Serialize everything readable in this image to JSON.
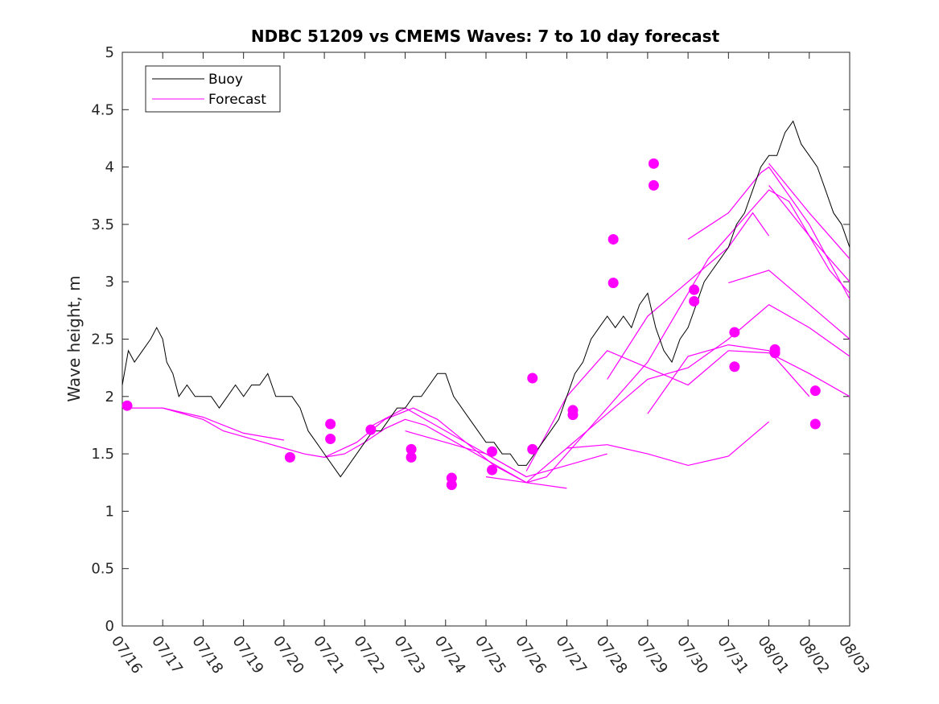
{
  "chart_data": {
    "type": "line",
    "title": "NDBC 51209 vs CMEMS Waves: 7 to 10 day forecast",
    "xlabel": "",
    "ylabel": "Wave height, m",
    "x_ticks": [
      "07/16",
      "07/17",
      "07/18",
      "07/19",
      "07/20",
      "07/21",
      "07/22",
      "07/23",
      "07/24",
      "07/25",
      "07/26",
      "07/27",
      "07/28",
      "07/29",
      "07/30",
      "07/31",
      "08/01",
      "08/02",
      "08/03"
    ],
    "x_unit": "days since 07/16",
    "xlim": [
      0,
      18
    ],
    "ylim": [
      0,
      5
    ],
    "y_ticks": [
      "0",
      "0.5",
      "1",
      "1.5",
      "2",
      "2.5",
      "3",
      "3.5",
      "4",
      "4.5",
      "5"
    ],
    "grid": false,
    "legend_position": "top-left",
    "colors": {
      "buoy": "#000000",
      "forecast": "#ff00ff"
    },
    "series": [
      {
        "name": "Buoy",
        "points": [
          [
            0.0,
            2.1
          ],
          [
            0.15,
            2.4
          ],
          [
            0.3,
            2.3
          ],
          [
            0.5,
            2.4
          ],
          [
            0.7,
            2.5
          ],
          [
            0.85,
            2.6
          ],
          [
            1.0,
            2.5
          ],
          [
            1.1,
            2.3
          ],
          [
            1.25,
            2.2
          ],
          [
            1.4,
            2.0
          ],
          [
            1.6,
            2.1
          ],
          [
            1.8,
            2.0
          ],
          [
            2.0,
            2.0
          ],
          [
            2.2,
            2.0
          ],
          [
            2.4,
            1.9
          ],
          [
            2.6,
            2.0
          ],
          [
            2.8,
            2.1
          ],
          [
            3.0,
            2.0
          ],
          [
            3.2,
            2.1
          ],
          [
            3.4,
            2.1
          ],
          [
            3.6,
            2.2
          ],
          [
            3.8,
            2.0
          ],
          [
            4.0,
            2.0
          ],
          [
            4.2,
            2.0
          ],
          [
            4.4,
            1.9
          ],
          [
            4.6,
            1.7
          ],
          [
            4.8,
            1.6
          ],
          [
            5.0,
            1.5
          ],
          [
            5.2,
            1.4
          ],
          [
            5.4,
            1.3
          ],
          [
            5.6,
            1.4
          ],
          [
            5.8,
            1.5
          ],
          [
            6.0,
            1.6
          ],
          [
            6.2,
            1.7
          ],
          [
            6.4,
            1.7
          ],
          [
            6.6,
            1.8
          ],
          [
            6.8,
            1.9
          ],
          [
            7.0,
            1.9
          ],
          [
            7.2,
            2.0
          ],
          [
            7.4,
            2.0
          ],
          [
            7.6,
            2.1
          ],
          [
            7.8,
            2.2
          ],
          [
            8.0,
            2.2
          ],
          [
            8.2,
            2.0
          ],
          [
            8.4,
            1.9
          ],
          [
            8.6,
            1.8
          ],
          [
            8.8,
            1.7
          ],
          [
            9.0,
            1.6
          ],
          [
            9.2,
            1.6
          ],
          [
            9.4,
            1.5
          ],
          [
            9.6,
            1.5
          ],
          [
            9.8,
            1.4
          ],
          [
            10.0,
            1.4
          ],
          [
            10.2,
            1.5
          ],
          [
            10.4,
            1.6
          ],
          [
            10.6,
            1.7
          ],
          [
            10.8,
            1.8
          ],
          [
            11.0,
            2.0
          ],
          [
            11.2,
            2.2
          ],
          [
            11.4,
            2.3
          ],
          [
            11.6,
            2.5
          ],
          [
            11.8,
            2.6
          ],
          [
            12.0,
            2.7
          ],
          [
            12.2,
            2.6
          ],
          [
            12.4,
            2.7
          ],
          [
            12.6,
            2.6
          ],
          [
            12.8,
            2.8
          ],
          [
            13.0,
            2.9
          ],
          [
            13.2,
            2.6
          ],
          [
            13.4,
            2.4
          ],
          [
            13.6,
            2.3
          ],
          [
            13.8,
            2.5
          ],
          [
            14.0,
            2.6
          ],
          [
            14.2,
            2.8
          ],
          [
            14.4,
            3.0
          ],
          [
            14.6,
            3.1
          ],
          [
            14.8,
            3.2
          ],
          [
            15.0,
            3.3
          ],
          [
            15.2,
            3.5
          ],
          [
            15.4,
            3.6
          ],
          [
            15.6,
            3.8
          ],
          [
            15.8,
            4.0
          ],
          [
            16.0,
            4.1
          ],
          [
            16.2,
            4.1
          ],
          [
            16.4,
            4.3
          ],
          [
            16.6,
            4.4
          ],
          [
            16.8,
            4.2
          ],
          [
            17.0,
            4.1
          ],
          [
            17.2,
            4.0
          ],
          [
            17.4,
            3.8
          ],
          [
            17.6,
            3.6
          ],
          [
            17.8,
            3.5
          ],
          [
            18.0,
            3.3
          ]
        ]
      },
      {
        "name": "Forecast",
        "points": [
          [
            0.1,
            1.9
          ],
          [
            0.5,
            1.9
          ],
          [
            1.0,
            1.9
          ],
          [
            1.5,
            1.85
          ],
          [
            2.0,
            1.8
          ],
          [
            2.5,
            1.7
          ],
          [
            3.0,
            1.65
          ],
          [
            3.5,
            1.6
          ],
          [
            4.0,
            1.55
          ],
          [
            4.5,
            1.5
          ],
          [
            5.0,
            1.47
          ],
          [
            5.5,
            1.5
          ],
          [
            6.0,
            1.6
          ],
          [
            6.5,
            1.72
          ],
          [
            7.0,
            1.8
          ],
          [
            7.5,
            1.75
          ],
          [
            8.0,
            1.65
          ],
          [
            8.5,
            1.55
          ],
          [
            9.0,
            1.45
          ],
          [
            9.5,
            1.35
          ],
          [
            10.0,
            1.25
          ],
          [
            10.5,
            1.3
          ],
          [
            11.0,
            1.5
          ],
          [
            11.5,
            1.7
          ],
          [
            12.0,
            1.9
          ],
          [
            12.5,
            2.1
          ],
          [
            13.0,
            2.3
          ],
          [
            13.5,
            2.6
          ],
          [
            14.0,
            2.9
          ],
          [
            14.5,
            3.2
          ],
          [
            15.0,
            3.4
          ],
          [
            15.5,
            3.6
          ],
          [
            16.0,
            3.8
          ],
          [
            16.5,
            3.7
          ],
          [
            17.0,
            3.4
          ],
          [
            17.5,
            3.1
          ],
          [
            18.0,
            2.9
          ]
        ]
      }
    ],
    "forecast_segments": [
      [
        [
          1.0,
          1.9
        ],
        [
          2.0,
          1.82
        ],
        [
          3.0,
          1.68
        ],
        [
          4.0,
          1.62
        ]
      ],
      [
        [
          5.0,
          1.47
        ],
        [
          5.8,
          1.6
        ],
        [
          6.5,
          1.8
        ],
        [
          7.2,
          1.9
        ],
        [
          7.8,
          1.8
        ],
        [
          8.5,
          1.6
        ],
        [
          9.2,
          1.4
        ],
        [
          10.0,
          1.25
        ],
        [
          11.0,
          1.2
        ]
      ],
      [
        [
          6.2,
          1.75
        ],
        [
          7.0,
          1.9
        ],
        [
          8.0,
          1.7
        ],
        [
          9.0,
          1.5
        ],
        [
          10.0,
          1.3
        ]
      ],
      [
        [
          7.0,
          1.7
        ],
        [
          8.0,
          1.6
        ],
        [
          9.0,
          1.5
        ],
        [
          10.0,
          1.3
        ],
        [
          11.0,
          1.4
        ],
        [
          12.0,
          1.5
        ]
      ],
      [
        [
          9.0,
          1.3
        ],
        [
          10.0,
          1.25
        ],
        [
          11.0,
          1.55
        ],
        [
          12.0,
          1.85
        ],
        [
          13.0,
          2.15
        ],
        [
          14.0,
          2.25
        ],
        [
          15.0,
          2.5
        ],
        [
          16.0,
          2.8
        ],
        [
          17.0,
          2.6
        ],
        [
          18.0,
          2.35
        ]
      ],
      [
        [
          10.0,
          1.35
        ],
        [
          11.0,
          2.0
        ],
        [
          12.0,
          2.4
        ],
        [
          13.0,
          2.25
        ],
        [
          14.0,
          2.1
        ],
        [
          15.0,
          2.4
        ],
        [
          16.0,
          2.38
        ],
        [
          17.0,
          2.2
        ],
        [
          18.0,
          2.0
        ]
      ],
      [
        [
          11.0,
          1.55
        ],
        [
          12.0,
          1.58
        ],
        [
          13.0,
          1.5
        ],
        [
          14.0,
          1.4
        ],
        [
          15.0,
          1.48
        ],
        [
          16.0,
          1.78
        ]
      ],
      [
        [
          12.0,
          2.15
        ],
        [
          13.0,
          2.7
        ],
        [
          14.0,
          3.0
        ],
        [
          15.0,
          3.3
        ],
        [
          15.6,
          3.6
        ],
        [
          16.0,
          3.4
        ]
      ],
      [
        [
          13.0,
          1.85
        ],
        [
          14.0,
          2.35
        ],
        [
          15.0,
          2.45
        ],
        [
          16.0,
          2.4
        ],
        [
          17.0,
          2.0
        ]
      ],
      [
        [
          14.0,
          3.37
        ],
        [
          15.0,
          3.6
        ],
        [
          15.8,
          3.95
        ],
        [
          16.0,
          4.0
        ],
        [
          17.0,
          3.5
        ],
        [
          18.0,
          2.85
        ]
      ],
      [
        [
          15.0,
          2.99
        ],
        [
          16.0,
          3.1
        ],
        [
          17.0,
          2.8
        ],
        [
          18.0,
          2.5
        ]
      ],
      [
        [
          16.0,
          4.03
        ],
        [
          17.0,
          3.6
        ],
        [
          18.0,
          3.2
        ]
      ],
      [
        [
          16.0,
          3.84
        ],
        [
          17.0,
          3.4
        ],
        [
          18.0,
          3.0
        ]
      ]
    ],
    "forecast_markers": [
      [
        0.12,
        1.92
      ],
      [
        4.15,
        1.47
      ],
      [
        5.15,
        1.76
      ],
      [
        5.15,
        1.63
      ],
      [
        6.15,
        1.71
      ],
      [
        7.15,
        1.54
      ],
      [
        7.15,
        1.47
      ],
      [
        8.15,
        1.29
      ],
      [
        8.15,
        1.23
      ],
      [
        9.15,
        1.52
      ],
      [
        9.15,
        1.36
      ],
      [
        10.15,
        2.16
      ],
      [
        10.15,
        1.54
      ],
      [
        11.15,
        1.88
      ],
      [
        11.15,
        1.84
      ],
      [
        12.15,
        3.37
      ],
      [
        12.15,
        2.99
      ],
      [
        13.15,
        4.03
      ],
      [
        13.15,
        3.84
      ],
      [
        14.15,
        2.93
      ],
      [
        14.15,
        2.83
      ],
      [
        15.15,
        2.56
      ],
      [
        15.15,
        2.26
      ],
      [
        16.15,
        2.41
      ],
      [
        16.15,
        2.38
      ],
      [
        17.15,
        2.05
      ],
      [
        17.15,
        1.76
      ]
    ]
  }
}
